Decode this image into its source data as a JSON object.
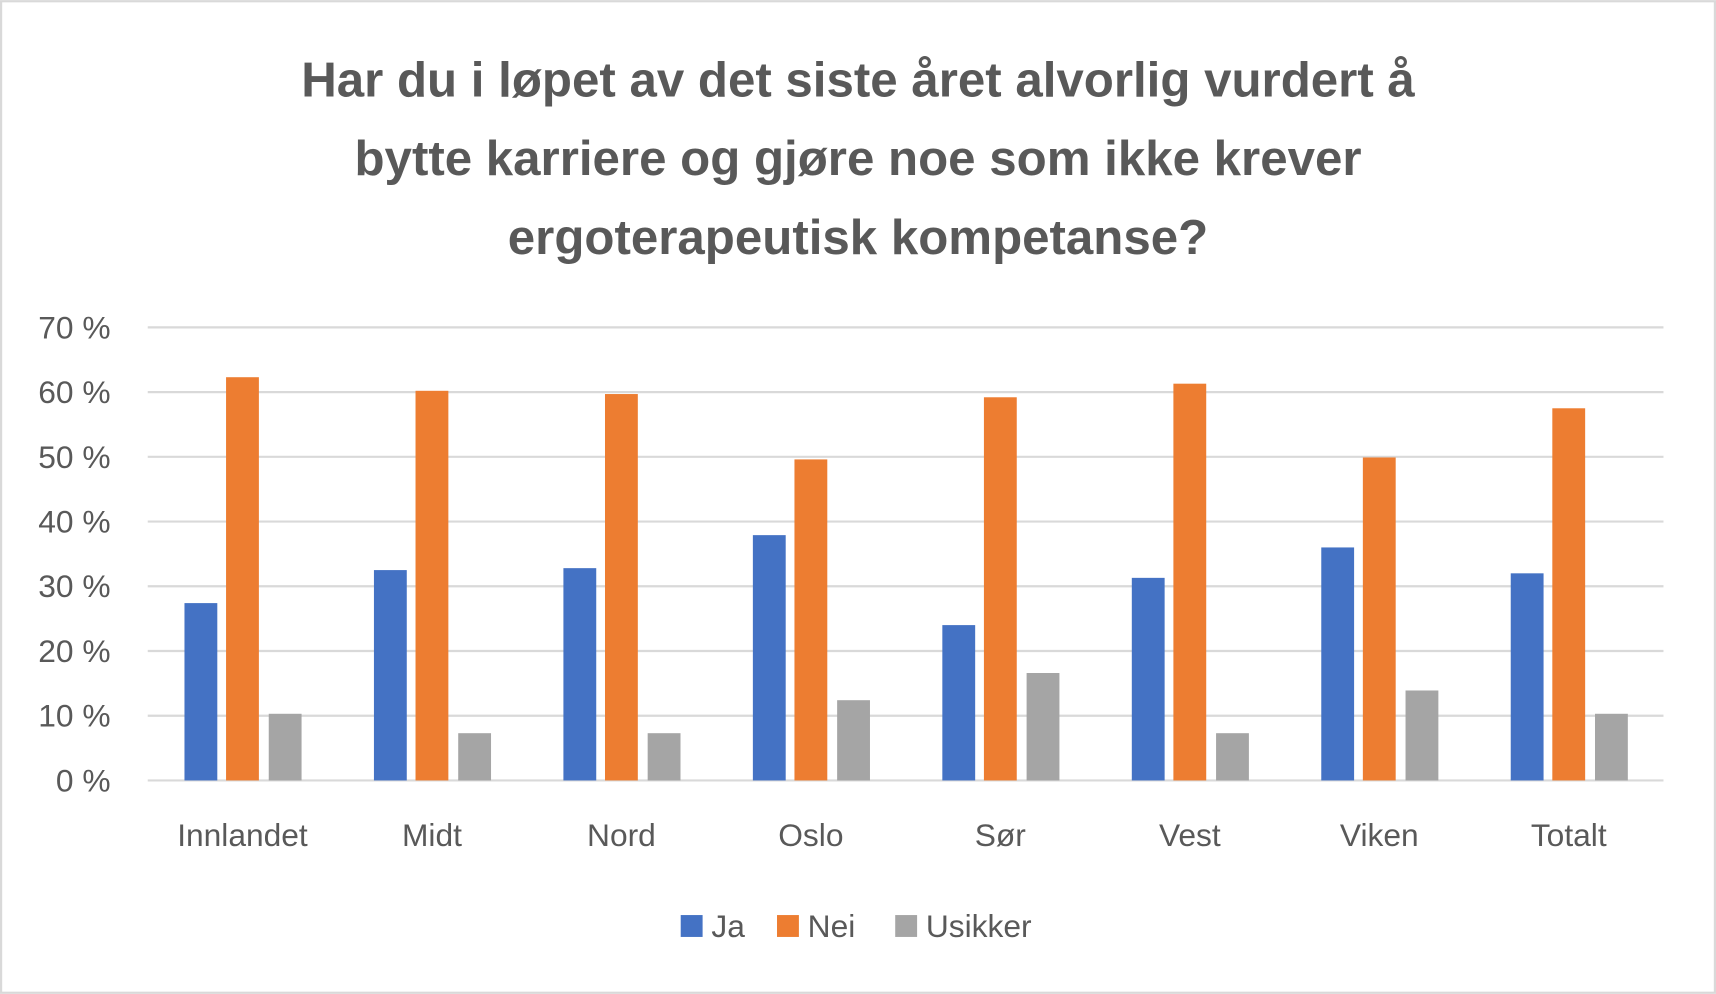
{
  "chart_data": {
    "type": "bar",
    "title": [
      "Har du i løpet av det siste året alvorlig vurdert å",
      "bytte karriere og gjøre noe som ikke krever",
      "ergoterapeutisk kompetanse?"
    ],
    "xlabel": "",
    "ylabel": "",
    "ylim": [
      0,
      70
    ],
    "yticks": [
      0,
      10,
      20,
      30,
      40,
      50,
      60,
      70
    ],
    "ytick_labels": [
      "0 %",
      "10 %",
      "20 %",
      "30 %",
      "40 %",
      "50 %",
      "60 %",
      "70 %"
    ],
    "grid": true,
    "legend_position": "bottom",
    "categories": [
      "Innlandet",
      "Midt",
      "Nord",
      "Oslo",
      "Sør",
      "Vest",
      "Viken",
      "Totalt"
    ],
    "series": [
      {
        "name": "Ja",
        "color": "#4472C4",
        "values": [
          27.4,
          32.5,
          32.8,
          37.9,
          24.0,
          31.3,
          36.0,
          32.0
        ]
      },
      {
        "name": "Nei",
        "color": "#ED7D31",
        "values": [
          62.3,
          60.2,
          59.7,
          49.6,
          59.2,
          61.3,
          49.9,
          57.5
        ]
      },
      {
        "name": "Usikker",
        "color": "#A5A5A5",
        "values": [
          10.3,
          7.3,
          7.3,
          12.4,
          16.6,
          7.3,
          13.9,
          10.3
        ]
      }
    ]
  }
}
